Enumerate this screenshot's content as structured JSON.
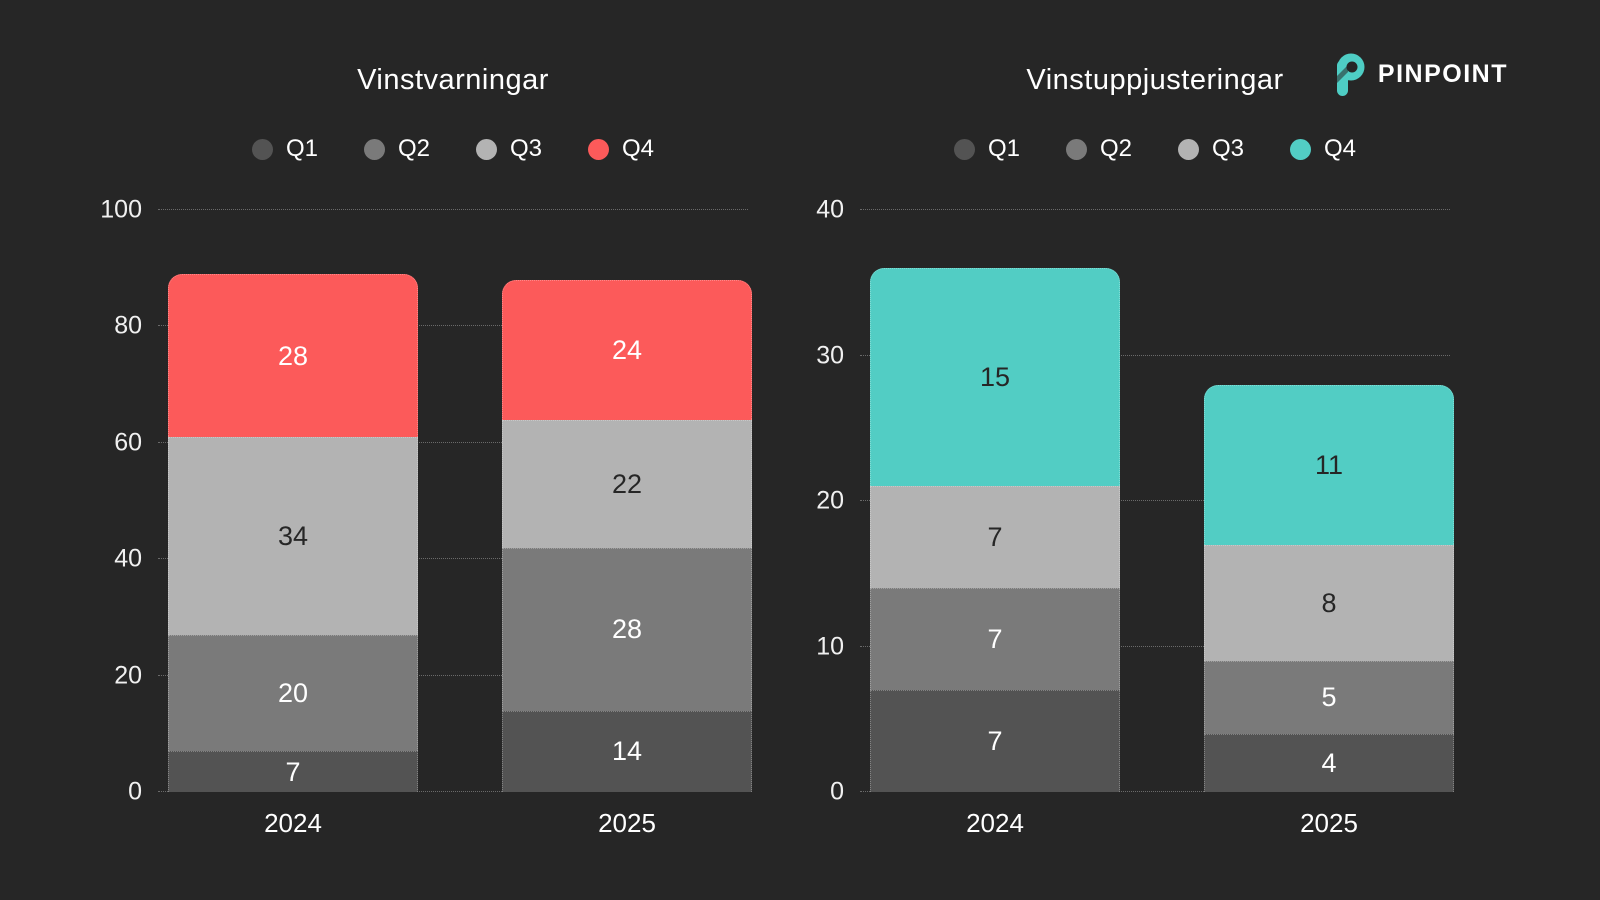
{
  "logo": {
    "text": "PINPOINT",
    "icon": "pinpoint-p-icon",
    "icon_color": "#4ECDC4"
  },
  "colors": {
    "background": "#262626",
    "grid_line": "#6A6A6A",
    "tick_text": "#F0F0F0",
    "title_text": "#FFFFFF",
    "accent_red": "#FC5A5A",
    "accent_teal": "#52CDC4"
  },
  "chart_data": [
    {
      "type": "bar",
      "stacked": true,
      "title": "Vinstvarningar",
      "categories": [
        "2024",
        "2025"
      ],
      "series": [
        {
          "name": "Q1",
          "color": "#535353",
          "label_color": "#FFFFFF",
          "values": [
            7,
            14
          ]
        },
        {
          "name": "Q2",
          "color": "#7A7A7A",
          "label_color": "#FFFFFF",
          "values": [
            20,
            28
          ]
        },
        {
          "name": "Q3",
          "color": "#B3B3B3",
          "label_color": "#262626",
          "values": [
            34,
            22
          ]
        },
        {
          "name": "Q4",
          "color": "#FC5A5A",
          "label_color": "#FFFFFF",
          "values": [
            28,
            24
          ]
        }
      ],
      "ylim": [
        0,
        100
      ],
      "yticks": [
        0,
        20,
        40,
        60,
        80,
        100
      ],
      "legend_position": "top",
      "grid": true
    },
    {
      "type": "bar",
      "stacked": true,
      "title": "Vinstuppjusteringar",
      "categories": [
        "2024",
        "2025"
      ],
      "series": [
        {
          "name": "Q1",
          "color": "#535353",
          "label_color": "#FFFFFF",
          "values": [
            7,
            4
          ]
        },
        {
          "name": "Q2",
          "color": "#7A7A7A",
          "label_color": "#FFFFFF",
          "values": [
            7,
            5
          ]
        },
        {
          "name": "Q3",
          "color": "#B3B3B3",
          "label_color": "#262626",
          "values": [
            7,
            8
          ]
        },
        {
          "name": "Q4",
          "color": "#52CDC4",
          "label_color": "#262626",
          "values": [
            15,
            11
          ]
        }
      ],
      "ylim": [
        0,
        40
      ],
      "yticks": [
        0,
        10,
        20,
        30,
        40
      ],
      "legend_position": "top",
      "grid": true
    }
  ]
}
